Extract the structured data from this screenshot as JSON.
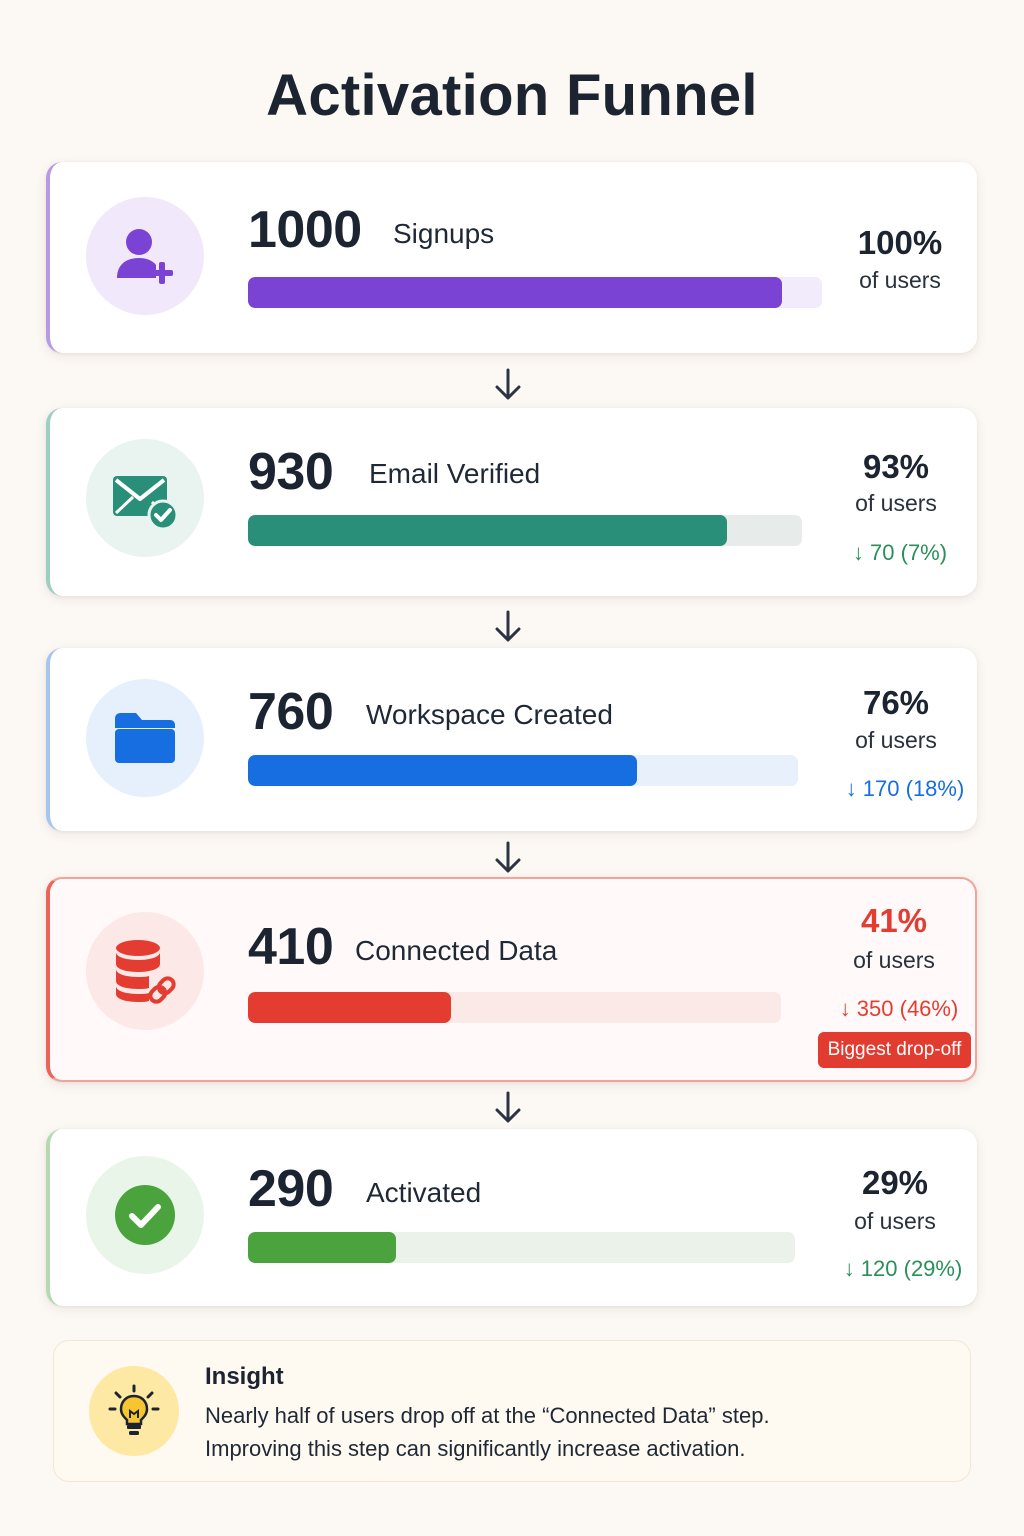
{
  "title": "Activation Funnel",
  "chart_data": {
    "type": "bar",
    "title": "Activation Funnel",
    "categories": [
      "Signups",
      "Email Verified",
      "Workspace Created",
      "Connected Data",
      "Activated"
    ],
    "values": [
      1000,
      930,
      760,
      410,
      290
    ],
    "percent_of_users": [
      100,
      93,
      76,
      41,
      29
    ],
    "drop_from_previous": [
      null,
      70,
      170,
      350,
      120
    ],
    "drop_percent": [
      null,
      7,
      18,
      46,
      29
    ],
    "xlim": [
      0,
      1000
    ]
  },
  "steps": [
    {
      "count": "1000",
      "label": "Signups",
      "pct": "100%",
      "sub": "of users",
      "drop": "",
      "fraction": 1.0,
      "icon": "user-plus-icon",
      "color": "#7b43d3",
      "track": "#f1ebfb",
      "soft": "#f1e9fb",
      "edge": "#b69be4"
    },
    {
      "count": "930",
      "label": "Email Verified",
      "pct": "93%",
      "sub": "of users",
      "drop": "↓ 70 (7%)",
      "fraction": 0.93,
      "icon": "mail-check-icon",
      "color": "#2a8f78",
      "track": "#e7ecea",
      "soft": "#e9f3ef",
      "edge": "#9ccfc1"
    },
    {
      "count": "760",
      "label": "Workspace Created",
      "pct": "76%",
      "sub": "of users",
      "drop": "↓ 170 (18%)",
      "fraction": 0.76,
      "icon": "folder-icon",
      "color": "#166ee1",
      "track": "#e8f0fb",
      "soft": "#e6f0fc",
      "edge": "#a7c6ee"
    },
    {
      "count": "410",
      "label": "Connected Data",
      "pct": "41%",
      "sub": "of users",
      "drop": "↓ 350 (46%)",
      "fraction": 0.41,
      "icon": "database-link-icon",
      "badge": "Biggest drop-off",
      "color": "#e53c31",
      "track": "#fbe9e7",
      "soft": "#fce8e6",
      "edge": "#ea6459"
    },
    {
      "count": "290",
      "label": "Activated",
      "pct": "29%",
      "sub": "of users",
      "drop": "↓ 120 (29%)",
      "fraction": 0.29,
      "icon": "check-circle-icon",
      "color": "#4aa33d",
      "track": "#eaf2ea",
      "soft": "#eaf5ea",
      "edge": "#b3dab0"
    }
  ],
  "insight": {
    "title": "Insight",
    "line1": "Nearly half of users drop off at the “Connected Data” step.",
    "line2": "Improving this step can significantly increase activation.",
    "icon": "lightbulb-icon"
  },
  "colors": {
    "pct_text": "#1b2430",
    "highlight_pct": "#e53c31",
    "drop_green": "#2a8f5a"
  }
}
